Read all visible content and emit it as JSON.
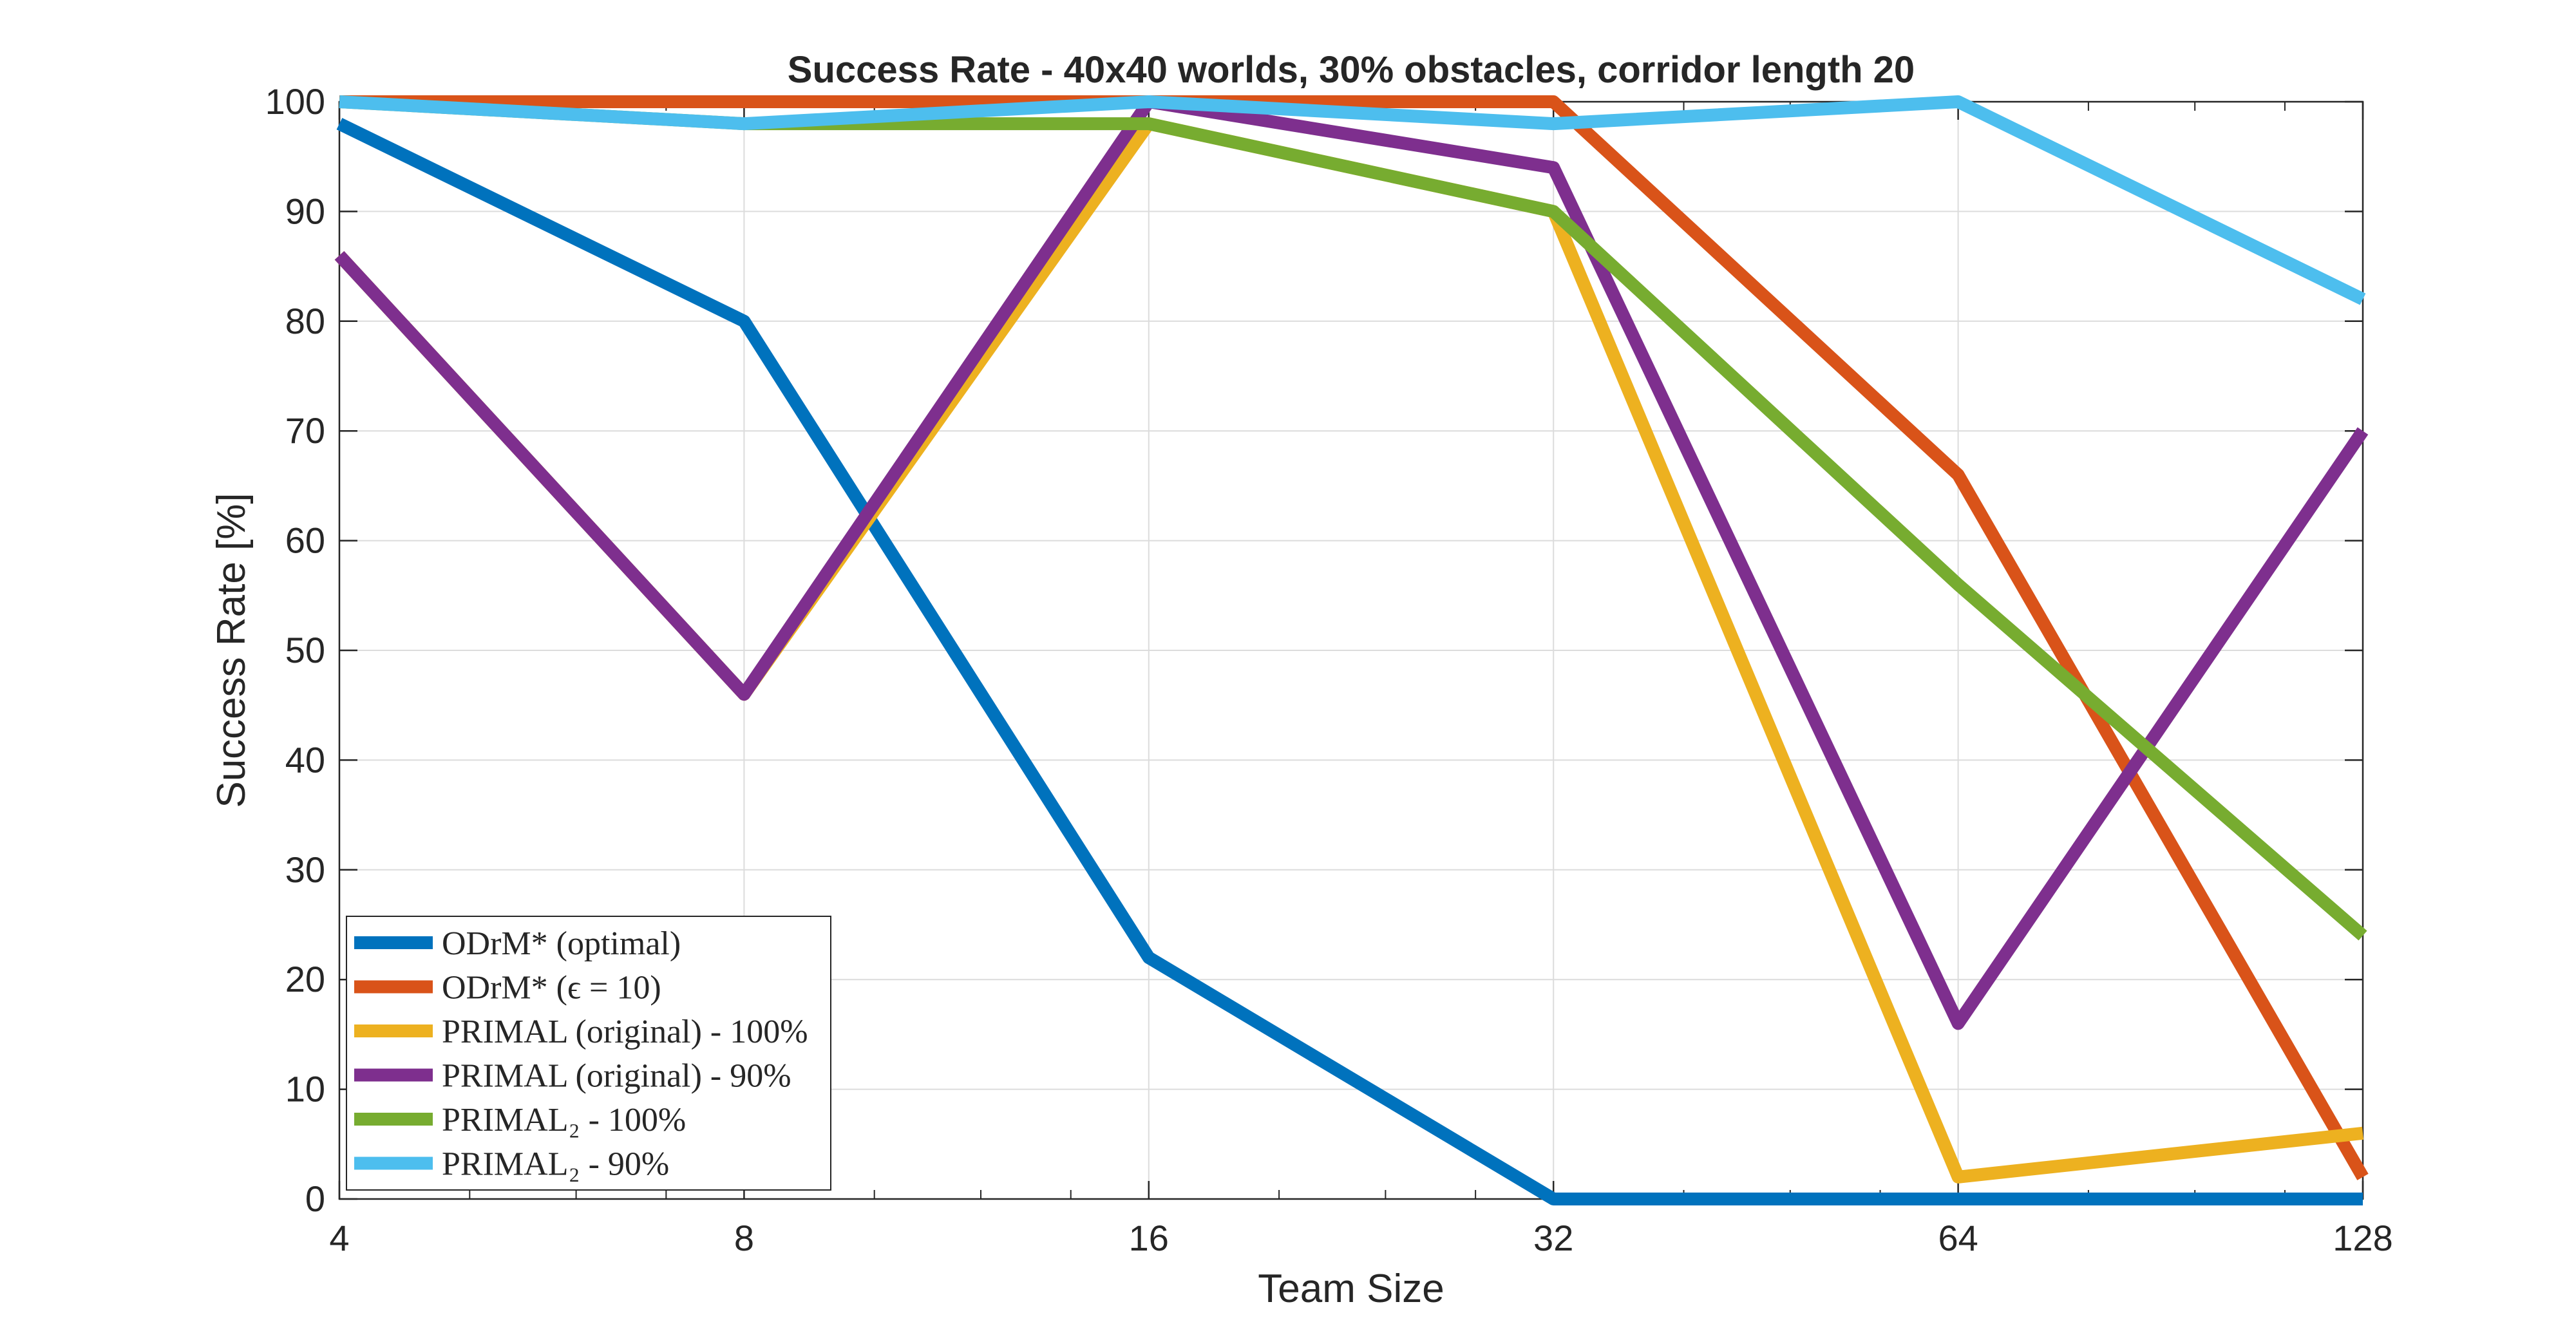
{
  "chart_data": {
    "type": "line",
    "title": "Success Rate - 40x40 worlds, 30% obstacles, corridor length 20",
    "xlabel": "Team Size",
    "ylabel": "Success Rate [%]",
    "x_scale": "log2",
    "x": [
      4,
      8,
      16,
      32,
      64,
      128
    ],
    "x_tick_labels": [
      "4",
      "8",
      "16",
      "32",
      "64",
      "128"
    ],
    "xlim": [
      4,
      128
    ],
    "ylim": [
      0,
      100
    ],
    "y_ticks": [
      0,
      10,
      20,
      30,
      40,
      50,
      60,
      70,
      80,
      90,
      100
    ],
    "y_tick_labels": [
      "0",
      "10",
      "20",
      "30",
      "40",
      "50",
      "60",
      "70",
      "80",
      "90",
      "100"
    ],
    "grid": true,
    "legend_position": "bottom-left",
    "series": [
      {
        "name": "ODrM* (optimal)",
        "color": "#0072BD",
        "values": [
          98,
          80,
          22,
          0,
          0,
          0
        ]
      },
      {
        "name": "ODrM* (ϵ = 10)",
        "color": "#D95319",
        "values": [
          100,
          100,
          100,
          100,
          66,
          2
        ]
      },
      {
        "name": "PRIMAL (original) - 100%",
        "color": "#EDB120",
        "values": [
          86,
          46,
          98,
          90,
          2,
          6
        ]
      },
      {
        "name": "PRIMAL (original) - 90%",
        "color": "#7E2F8E",
        "values": [
          86,
          46,
          100,
          94,
          16,
          70
        ]
      },
      {
        "name": "PRIMAL₂ - 100%",
        "color": "#77AC30",
        "values": [
          100,
          98,
          98,
          90,
          56,
          24
        ]
      },
      {
        "name": "PRIMAL₂ - 90%",
        "color": "#4DBEEE",
        "values": [
          100,
          98,
          100,
          98,
          100,
          82
        ]
      }
    ]
  }
}
